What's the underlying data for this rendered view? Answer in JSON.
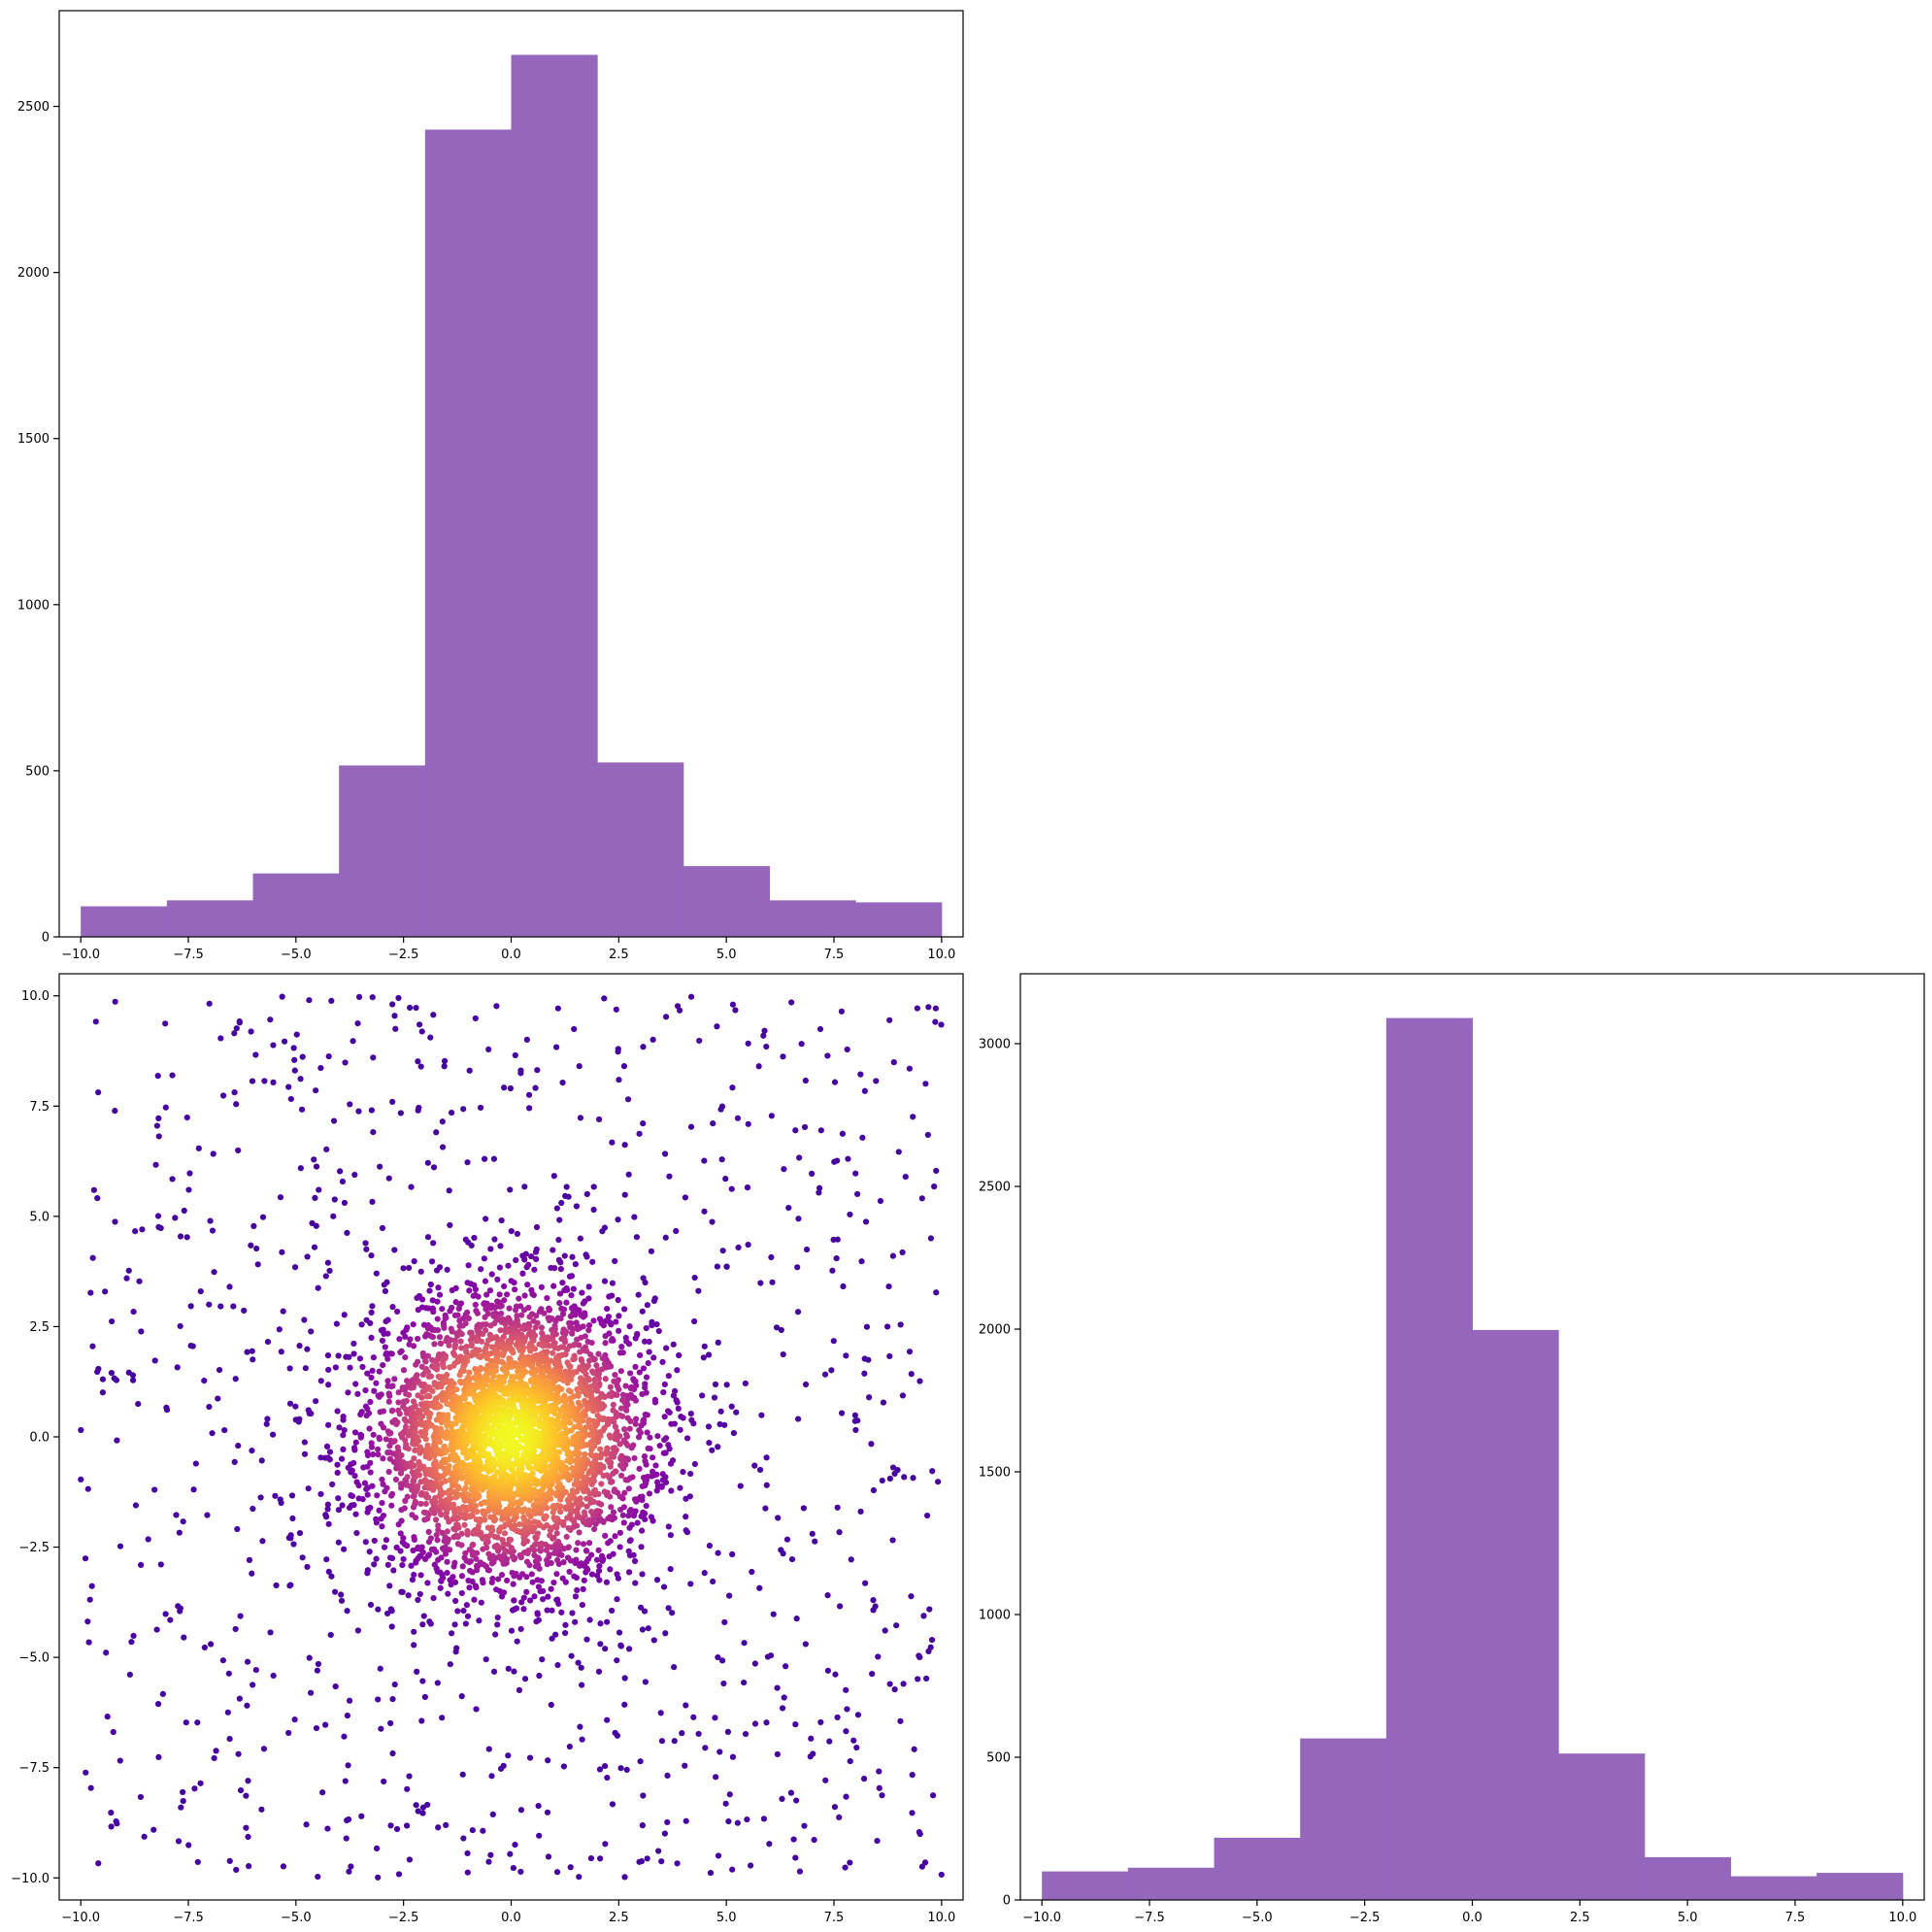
{
  "colors": {
    "bar_fill": "#9467bd",
    "scatter_colormap": "plasma",
    "axis": "#000000",
    "background": "#ffffff"
  },
  "chart_data": [
    {
      "id": "top-histogram",
      "type": "bar",
      "bin_edges": [
        -10,
        -8,
        -6,
        -4,
        -2,
        0,
        2,
        4,
        6,
        8,
        10
      ],
      "values": [
        92,
        110,
        191,
        516,
        2430,
        2655,
        525,
        213,
        110,
        104
      ],
      "xlim": [
        -10.5,
        10.5
      ],
      "ylim": [
        0,
        2788
      ],
      "xticks": [
        -10,
        -7.5,
        -5,
        -2.5,
        0,
        2.5,
        5,
        7.5,
        10
      ],
      "xtick_labels": [
        "−10.0",
        "−7.5",
        "−5.0",
        "−2.5",
        "0.0",
        "2.5",
        "5.0",
        "7.5",
        "10.0"
      ],
      "yticks": [
        0,
        500,
        1000,
        1500,
        2000,
        2500
      ],
      "ytick_labels": [
        "0",
        "500",
        "1000",
        "1500",
        "2000",
        "2500"
      ]
    },
    {
      "id": "scatter-density",
      "type": "scatter",
      "description": "approximately 5000 points: ~1000 uniform on [-10,10]^2 plus a dense gaussian core (sigma ~ 1.6) around the origin, colored by local density using the plasma colormap",
      "xlim": [
        -10.5,
        10.5
      ],
      "ylim": [
        -10.5,
        10.5
      ],
      "xticks": [
        -10,
        -7.5,
        -5,
        -2.5,
        0,
        2.5,
        5,
        7.5,
        10
      ],
      "xtick_labels": [
        "−10.0",
        "−7.5",
        "−5.0",
        "−2.5",
        "0.0",
        "2.5",
        "5.0",
        "7.5",
        "10.0"
      ],
      "yticks": [
        -10,
        -7.5,
        -5,
        -2.5,
        0,
        2.5,
        5,
        7.5,
        10
      ],
      "ytick_labels": [
        "−10.0",
        "−7.5",
        "−5.0",
        "−2.5",
        "0.0",
        "2.5",
        "5.0",
        "7.5",
        "10.0"
      ]
    },
    {
      "id": "right-histogram",
      "type": "bar",
      "bin_edges": [
        -10,
        -8,
        -6,
        -4,
        -2,
        0,
        2,
        4,
        6,
        8,
        10
      ],
      "values": [
        100,
        113,
        218,
        566,
        3090,
        1997,
        513,
        150,
        83,
        95
      ],
      "xlim": [
        -10.5,
        10.5
      ],
      "ylim": [
        0,
        3245
      ],
      "xticks": [
        -10,
        -7.5,
        -5,
        -2.5,
        0,
        2.5,
        5,
        7.5,
        10
      ],
      "xtick_labels": [
        "−10.0",
        "−7.5",
        "−5.0",
        "−2.5",
        "0.0",
        "2.5",
        "5.0",
        "7.5",
        "10.0"
      ],
      "yticks": [
        0,
        500,
        1000,
        1500,
        2000,
        2500,
        3000
      ],
      "ytick_labels": [
        "0",
        "500",
        "1000",
        "1500",
        "2000",
        "2500",
        "3000"
      ]
    }
  ]
}
